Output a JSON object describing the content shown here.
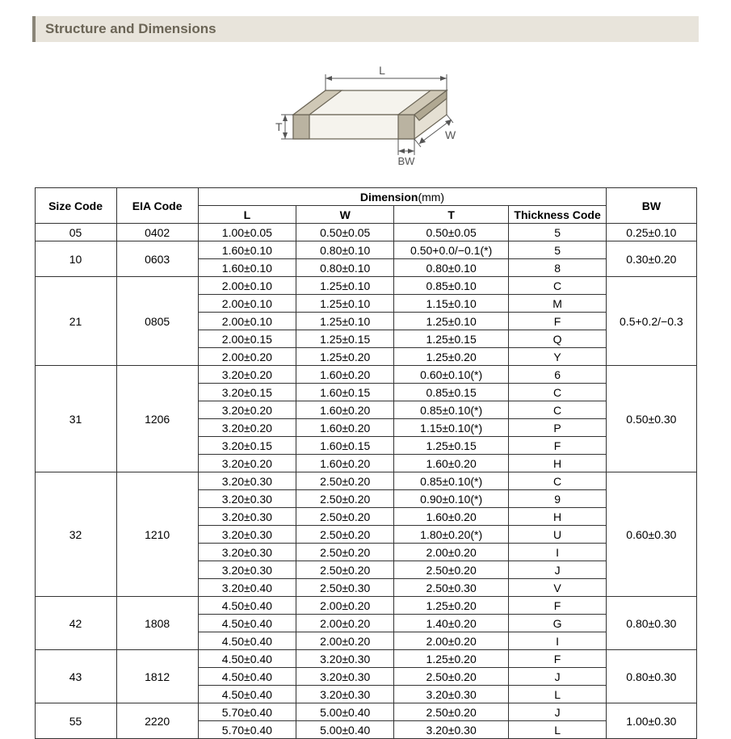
{
  "section_title": "Structure and Dimensions",
  "diagram": {
    "labels": {
      "L": "L",
      "W": "W",
      "T": "T",
      "BW": "BW"
    },
    "fill_color": "#f5f3ed",
    "stroke_color": "#6b6556",
    "label_color": "#6b6556",
    "terminal_fill": "#bab3a1",
    "arrow_color": "#555"
  },
  "table": {
    "hdr_size": "Size Code",
    "hdr_eia": "EIA Code",
    "hdr_dim": "Dimension",
    "hdr_dim_unit": "(mm)",
    "hdr_L": "L",
    "hdr_W": "W",
    "hdr_T": "T",
    "hdr_tc": "Thickness  Code",
    "hdr_BW": "BW",
    "groups": [
      {
        "size": "05",
        "eia": "0402",
        "bw": "0.25±0.10",
        "rows": [
          {
            "L": "1.00±0.05",
            "W": "0.50±0.05",
            "T": "0.50±0.05",
            "tc": "5"
          }
        ]
      },
      {
        "size": "10",
        "eia": "0603",
        "bw": "0.30±0.20",
        "rows": [
          {
            "L": "1.60±0.10",
            "W": "0.80±0.10",
            "T": "0.50+0.0/−0.1(*)",
            "tc": "5"
          },
          {
            "L": "1.60±0.10",
            "W": "0.80±0.10",
            "T": "0.80±0.10",
            "tc": "8"
          }
        ]
      },
      {
        "size": "21",
        "eia": "0805",
        "bw": "0.5+0.2/−0.3",
        "rows": [
          {
            "L": "2.00±0.10",
            "W": "1.25±0.10",
            "T": "0.85±0.10",
            "tc": "C"
          },
          {
            "L": "2.00±0.10",
            "W": "1.25±0.10",
            "T": "1.15±0.10",
            "tc": "M"
          },
          {
            "L": "2.00±0.10",
            "W": "1.25±0.10",
            "T": "1.25±0.10",
            "tc": "F"
          },
          {
            "L": "2.00±0.15",
            "W": "1.25±0.15",
            "T": "1.25±0.15",
            "tc": "Q"
          },
          {
            "L": "2.00±0.20",
            "W": "1.25±0.20",
            "T": "1.25±0.20",
            "tc": "Y"
          }
        ]
      },
      {
        "size": "31",
        "eia": "1206",
        "bw": "0.50±0.30",
        "rows": [
          {
            "L": "3.20±0.20",
            "W": "1.60±0.20",
            "T": "0.60±0.10(*)",
            "tc": "6"
          },
          {
            "L": "3.20±0.15",
            "W": "1.60±0.15",
            "T": "0.85±0.15",
            "tc": "C"
          },
          {
            "L": "3.20±0.20",
            "W": "1.60±0.20",
            "T": "0.85±0.10(*)",
            "tc": "C"
          },
          {
            "L": "3.20±0.20",
            "W": "1.60±0.20",
            "T": "1.15±0.10(*)",
            "tc": "P"
          },
          {
            "L": "3.20±0.15",
            "W": "1.60±0.15",
            "T": "1.25±0.15",
            "tc": "F"
          },
          {
            "L": "3.20±0.20",
            "W": "1.60±0.20",
            "T": "1.60±0.20",
            "tc": "H"
          }
        ]
      },
      {
        "size": "32",
        "eia": "1210",
        "bw": "0.60±0.30",
        "rows": [
          {
            "L": "3.20±0.30",
            "W": "2.50±0.20",
            "T": "0.85±0.10(*)",
            "tc": "C"
          },
          {
            "L": "3.20±0.30",
            "W": "2.50±0.20",
            "T": "0.90±0.10(*)",
            "tc": "9"
          },
          {
            "L": "3.20±0.30",
            "W": "2.50±0.20",
            "T": "1.60±0.20",
            "tc": "H"
          },
          {
            "L": "3.20±0.30",
            "W": "2.50±0.20",
            "T": "1.80±0.20(*)",
            "tc": "U"
          },
          {
            "L": "3.20±0.30",
            "W": "2.50±0.20",
            "T": "2.00±0.20",
            "tc": "I"
          },
          {
            "L": "3.20±0.30",
            "W": "2.50±0.20",
            "T": "2.50±0.20",
            "tc": "J"
          },
          {
            "L": "3.20±0.40",
            "W": "2.50±0.30",
            "T": "2.50±0.30",
            "tc": "V"
          }
        ]
      },
      {
        "size": "42",
        "eia": "1808",
        "bw": "0.80±0.30",
        "rows": [
          {
            "L": "4.50±0.40",
            "W": "2.00±0.20",
            "T": "1.25±0.20",
            "tc": "F"
          },
          {
            "L": "4.50±0.40",
            "W": "2.00±0.20",
            "T": "1.40±0.20",
            "tc": "G"
          },
          {
            "L": "4.50±0.40",
            "W": "2.00±0.20",
            "T": "2.00±0.20",
            "tc": "I"
          }
        ]
      },
      {
        "size": "43",
        "eia": "1812",
        "bw": "0.80±0.30",
        "rows": [
          {
            "L": "4.50±0.40",
            "W": "3.20±0.30",
            "T": "1.25±0.20",
            "tc": "F"
          },
          {
            "L": "4.50±0.40",
            "W": "3.20±0.30",
            "T": "2.50±0.20",
            "tc": "J"
          },
          {
            "L": "4.50±0.40",
            "W": "3.20±0.30",
            "T": "3.20±0.30",
            "tc": "L"
          }
        ]
      },
      {
        "size": "55",
        "eia": "2220",
        "bw": "1.00±0.30",
        "rows": [
          {
            "L": "5.70±0.40",
            "W": "5.00±0.40",
            "T": "2.50±0.20",
            "tc": "J"
          },
          {
            "L": "5.70±0.40",
            "W": "5.00±0.40",
            "T": "3.20±0.30",
            "tc": "L"
          }
        ]
      }
    ]
  }
}
